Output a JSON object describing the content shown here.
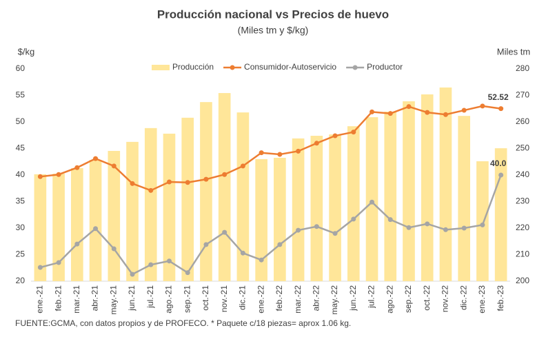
{
  "chart_data": {
    "type": "combo",
    "title": "Producción nacional vs Precios de huevo",
    "subtitle": "(Miles tm y $/kg)",
    "y_label": "$/kg",
    "y2_label": "Miles tm",
    "source": "FUENTE:GCMA, con datos propios y de PROFECO. * Paquete c/18  piezas= aprox 1.06 kg.",
    "categories": [
      "ene.-21",
      "feb.-21",
      "mar.-21",
      "abr.-21",
      "may.-21",
      "jun.-21",
      "jul.-21",
      "ago.-21",
      "sep.-21",
      "oct.-21",
      "nov.-21",
      "dic.-21",
      "ene.-22",
      "feb.-22",
      "mar.-22",
      "abr.-22",
      "may.-22",
      "jun.-22",
      "jul.-22",
      "ago.-22",
      "sep.-22",
      "oct.-22",
      "nov.-22",
      "dic.-22",
      "ene.-23",
      "feb.-23"
    ],
    "series": [
      {
        "name": "Producción",
        "type": "bar",
        "axis": "y2",
        "color": "#FFE699",
        "values": [
          240.3,
          240.5,
          242.6,
          245.7,
          249.1,
          252.5,
          257.7,
          255.6,
          261.6,
          267.5,
          270.9,
          263.6,
          246,
          246.5,
          253.8,
          254.8,
          255.3,
          258.4,
          261.8,
          263.9,
          267.8,
          270.4,
          273,
          262.3,
          245.2,
          250.1
        ]
      },
      {
        "name": "Consumidor-Autoservicio",
        "type": "line",
        "axis": "y",
        "color": "#ED7D31",
        "values": [
          39.7,
          40.1,
          41.4,
          43.1,
          41.7,
          38.4,
          37.1,
          38.7,
          38.6,
          39.2,
          40.1,
          41.7,
          44.2,
          43.9,
          44.5,
          46.0,
          47.4,
          48.1,
          51.9,
          51.6,
          52.9,
          51.8,
          51.4,
          52.2,
          53.0,
          52.52
        ],
        "value_labels": [
          null,
          null,
          null,
          null,
          null,
          null,
          null,
          null,
          null,
          null,
          null,
          null,
          null,
          null,
          null,
          null,
          null,
          null,
          null,
          null,
          null,
          null,
          null,
          null,
          null,
          "52.52"
        ]
      },
      {
        "name": "Productor",
        "type": "line",
        "axis": "y",
        "color": "#A5A5A5",
        "values": [
          22.6,
          23.5,
          27.0,
          29.9,
          26.1,
          21.3,
          23.1,
          23.8,
          21.6,
          26.9,
          29.2,
          25.3,
          24.0,
          26.9,
          29.6,
          30.3,
          29.0,
          31.7,
          34.9,
          31.6,
          30.1,
          30.8,
          29.7,
          30.0,
          30.6,
          40.0
        ],
        "value_labels": [
          null,
          null,
          null,
          null,
          null,
          null,
          null,
          null,
          null,
          null,
          null,
          null,
          null,
          null,
          null,
          null,
          null,
          null,
          null,
          null,
          null,
          null,
          null,
          null,
          null,
          "40.0"
        ]
      }
    ],
    "ylim": [
      20,
      60
    ],
    "yticks": [
      20,
      25,
      30,
      35,
      40,
      45,
      50,
      55,
      60
    ],
    "y2lim": [
      200,
      280
    ],
    "y2ticks": [
      200,
      210,
      220,
      230,
      240,
      250,
      260,
      270,
      280
    ],
    "legend": "top"
  }
}
